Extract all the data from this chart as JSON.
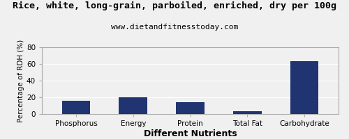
{
  "title": "Rice, white, long-grain, parboiled, enriched, dry per 100g",
  "subtitle": "www.dietandfitnesstoday.com",
  "xlabel": "Different Nutrients",
  "ylabel": "Percentage of RDH (%)",
  "categories": [
    "Phosphorus",
    "Energy",
    "Protein",
    "Total Fat",
    "Carbohydrate"
  ],
  "values": [
    16,
    20,
    14,
    3,
    63
  ],
  "bar_color": "#1f3470",
  "ylim": [
    0,
    80
  ],
  "yticks": [
    0,
    20,
    40,
    60,
    80
  ],
  "background_color": "#f0f0f0",
  "plot_bg_color": "#f0f0f0",
  "title_fontsize": 9.5,
  "subtitle_fontsize": 8,
  "xlabel_fontsize": 9,
  "ylabel_fontsize": 7.5,
  "tick_fontsize": 7.5
}
